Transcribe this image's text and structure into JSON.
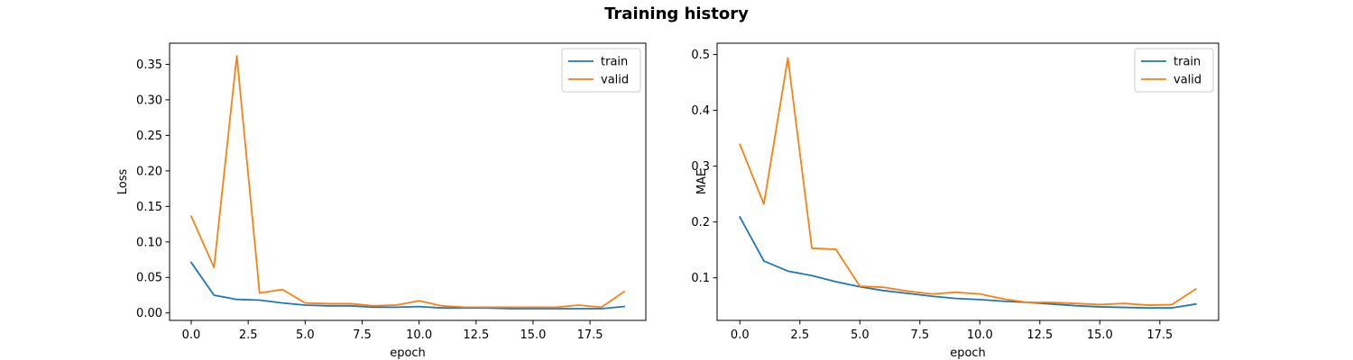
{
  "figure": {
    "title": "Training history"
  },
  "chart_data": [
    {
      "type": "line",
      "xlabel": "epoch",
      "ylabel": "Loss",
      "xlim": [
        -0.95,
        19.95
      ],
      "ylim": [
        -0.0105,
        0.3797
      ],
      "xticks": [
        0.0,
        2.5,
        5.0,
        7.5,
        10.0,
        12.5,
        15.0,
        17.5
      ],
      "xtick_labels": [
        "0.0",
        "2.5",
        "5.0",
        "7.5",
        "10.0",
        "12.5",
        "15.0",
        "17.5"
      ],
      "yticks": [
        0.0,
        0.05,
        0.1,
        0.15,
        0.2,
        0.25,
        0.3,
        0.35
      ],
      "ytick_labels": [
        "0.00",
        "0.05",
        "0.10",
        "0.15",
        "0.20",
        "0.25",
        "0.30",
        "0.35"
      ],
      "grid": false,
      "legend": "top-right",
      "x": [
        0,
        1,
        2,
        3,
        4,
        5,
        6,
        7,
        8,
        9,
        10,
        11,
        12,
        13,
        14,
        15,
        16,
        17,
        18,
        19
      ],
      "series": [
        {
          "name": "train",
          "color": "#1f77b4",
          "values": [
            0.071,
            0.025,
            0.019,
            0.018,
            0.014,
            0.011,
            0.01,
            0.01,
            0.008,
            0.008,
            0.009,
            0.007,
            0.007,
            0.007,
            0.006,
            0.006,
            0.006,
            0.006,
            0.006,
            0.009
          ]
        },
        {
          "name": "valid",
          "color": "#ff7f0e",
          "values": [
            0.136,
            0.064,
            0.362,
            0.028,
            0.033,
            0.014,
            0.013,
            0.013,
            0.01,
            0.011,
            0.017,
            0.01,
            0.008,
            0.008,
            0.008,
            0.008,
            0.008,
            0.011,
            0.008,
            0.03
          ]
        }
      ]
    },
    {
      "type": "line",
      "xlabel": "epoch",
      "ylabel": "MAE",
      "xlim": [
        -0.95,
        19.95
      ],
      "ylim": [
        0.0237,
        0.5203
      ],
      "xticks": [
        0.0,
        2.5,
        5.0,
        7.5,
        10.0,
        12.5,
        15.0,
        17.5
      ],
      "xtick_labels": [
        "0.0",
        "2.5",
        "5.0",
        "7.5",
        "10.0",
        "12.5",
        "15.0",
        "17.5"
      ],
      "yticks": [
        0.1,
        0.2,
        0.3,
        0.4,
        0.5
      ],
      "ytick_labels": [
        "0.1",
        "0.2",
        "0.3",
        "0.4",
        "0.5"
      ],
      "grid": false,
      "legend": "top-right",
      "x": [
        0,
        1,
        2,
        3,
        4,
        5,
        6,
        7,
        8,
        9,
        10,
        11,
        12,
        13,
        14,
        15,
        16,
        17,
        18,
        19
      ],
      "series": [
        {
          "name": "train",
          "color": "#1f77b4",
          "values": [
            0.209,
            0.13,
            0.112,
            0.104,
            0.093,
            0.084,
            0.077,
            0.072,
            0.067,
            0.063,
            0.061,
            0.058,
            0.056,
            0.053,
            0.05,
            0.048,
            0.047,
            0.046,
            0.046,
            0.053
          ]
        },
        {
          "name": "valid",
          "color": "#ff7f0e",
          "values": [
            0.339,
            0.232,
            0.494,
            0.153,
            0.151,
            0.085,
            0.083,
            0.076,
            0.071,
            0.074,
            0.071,
            0.062,
            0.056,
            0.056,
            0.054,
            0.052,
            0.054,
            0.051,
            0.052,
            0.08
          ]
        }
      ]
    }
  ]
}
